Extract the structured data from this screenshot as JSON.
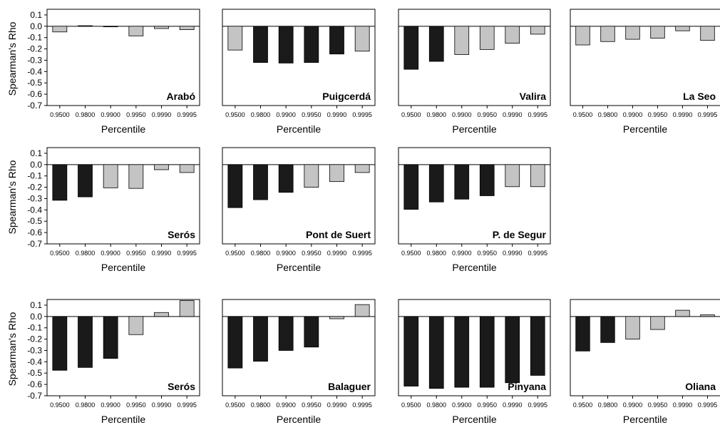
{
  "figure": {
    "ylabel": "Spearman's Rho",
    "xlabel": "Percentile"
  },
  "colors": {
    "significant": "#1a1a1a",
    "not_significant": "#c4c4c4",
    "axis": "#000000"
  },
  "chart_data": [
    {
      "type": "bar",
      "title": "Arabó",
      "categories": [
        "0.9500",
        "0.9800",
        "0.9900",
        "0.9950",
        "0.9990",
        "0.9995"
      ],
      "values": [
        -0.05,
        0.005,
        -0.005,
        -0.085,
        -0.02,
        -0.03
      ],
      "significant": [
        false,
        false,
        false,
        false,
        false,
        false
      ],
      "ylim": [
        -0.7,
        0.15
      ],
      "yticks": [
        "0.1",
        "0.0",
        "-0.1",
        "-0.2",
        "-0.3",
        "-0.4",
        "-0.5",
        "-0.6",
        "-0.7"
      ],
      "xlabel": "Percentile",
      "ylabel": "Spearman's Rho"
    },
    {
      "type": "bar",
      "title": "Puigcerdá",
      "categories": [
        "0.9500",
        "0.9800",
        "0.9900",
        "0.9950",
        "0.9990",
        "0.9995"
      ],
      "values": [
        -0.21,
        -0.32,
        -0.325,
        -0.32,
        -0.245,
        -0.22
      ],
      "significant": [
        false,
        true,
        true,
        true,
        true,
        false
      ],
      "ylim": [
        -0.7,
        0.15
      ],
      "xlabel": "Percentile"
    },
    {
      "type": "bar",
      "title": "Valira",
      "categories": [
        "0.9500",
        "0.9800",
        "0.9900",
        "0.9950",
        "0.9990",
        "0.9995"
      ],
      "values": [
        -0.38,
        -0.31,
        -0.25,
        -0.205,
        -0.15,
        -0.07
      ],
      "significant": [
        true,
        true,
        false,
        false,
        false,
        false
      ],
      "ylim": [
        -0.7,
        0.15
      ],
      "xlabel": "Percentile"
    },
    {
      "type": "bar",
      "title": "La Seo",
      "categories": [
        "0.9500",
        "0.9800",
        "0.9900",
        "0.9950",
        "0.9990",
        "0.9995"
      ],
      "values": [
        -0.165,
        -0.135,
        -0.115,
        -0.105,
        -0.04,
        -0.125
      ],
      "significant": [
        false,
        false,
        false,
        false,
        false,
        false
      ],
      "ylim": [
        -0.7,
        0.15
      ],
      "xlabel": "Percentile"
    },
    {
      "type": "bar",
      "title": "Serós",
      "categories": [
        "0.9500",
        "0.9800",
        "0.9900",
        "0.9950",
        "0.9990",
        "0.9995"
      ],
      "values": [
        -0.315,
        -0.285,
        -0.205,
        -0.21,
        -0.045,
        -0.07
      ],
      "significant": [
        true,
        true,
        false,
        false,
        false,
        false
      ],
      "ylim": [
        -0.7,
        0.15
      ],
      "yticks": [
        "0.1",
        "0.0",
        "-0.1",
        "-0.2",
        "-0.3",
        "-0.4",
        "-0.5",
        "-0.6",
        "-0.7"
      ],
      "xlabel": "Percentile",
      "ylabel": "Spearman's Rho"
    },
    {
      "type": "bar",
      "title": "Pont de Suert",
      "categories": [
        "0.9500",
        "0.9800",
        "0.9900",
        "0.9950",
        "0.9990",
        "0.9995"
      ],
      "values": [
        -0.38,
        -0.31,
        -0.245,
        -0.2,
        -0.15,
        -0.07
      ],
      "significant": [
        true,
        true,
        true,
        false,
        false,
        false
      ],
      "ylim": [
        -0.7,
        0.15
      ],
      "xlabel": "Percentile"
    },
    {
      "type": "bar",
      "title": "P. de Segur",
      "categories": [
        "0.9500",
        "0.9800",
        "0.9900",
        "0.9950",
        "0.9990",
        "0.9995"
      ],
      "values": [
        -0.395,
        -0.33,
        -0.305,
        -0.275,
        -0.195,
        -0.195
      ],
      "significant": [
        true,
        true,
        true,
        true,
        false,
        false
      ],
      "ylim": [
        -0.7,
        0.15
      ],
      "xlabel": "Percentile"
    },
    {
      "type": "bar",
      "title": "Serós",
      "categories": [
        "0.9500",
        "0.9800",
        "0.9900",
        "0.9950",
        "0.9990",
        "0.9995"
      ],
      "values": [
        -0.475,
        -0.45,
        -0.37,
        -0.16,
        0.035,
        0.14
      ],
      "significant": [
        true,
        true,
        true,
        false,
        false,
        false
      ],
      "ylim": [
        -0.7,
        0.15
      ],
      "yticks": [
        "0.1",
        "0.0",
        "-0.1",
        "-0.2",
        "-0.3",
        "-0.4",
        "-0.5",
        "-0.6",
        "-0.7"
      ],
      "xlabel": "Percentile",
      "ylabel": "Spearman's Rho"
    },
    {
      "type": "bar",
      "title": "Balaguer",
      "categories": [
        "0.9500",
        "0.9800",
        "0.9900",
        "0.9950",
        "0.9990",
        "0.9995"
      ],
      "values": [
        -0.455,
        -0.395,
        -0.3,
        -0.27,
        -0.02,
        0.105
      ],
      "significant": [
        true,
        true,
        true,
        true,
        false,
        false
      ],
      "ylim": [
        -0.7,
        0.15
      ],
      "xlabel": "Percentile"
    },
    {
      "type": "bar",
      "title": "Pinyana",
      "categories": [
        "0.9500",
        "0.9800",
        "0.9900",
        "0.9950",
        "0.9990",
        "0.9995"
      ],
      "values": [
        -0.615,
        -0.635,
        -0.625,
        -0.625,
        -0.585,
        -0.52
      ],
      "significant": [
        true,
        true,
        true,
        true,
        true,
        true
      ],
      "ylim": [
        -0.7,
        0.15
      ],
      "xlabel": "Percentile"
    },
    {
      "type": "bar",
      "title": "Oliana",
      "categories": [
        "0.9500",
        "0.9800",
        "0.9900",
        "0.9950",
        "0.9990",
        "0.9995"
      ],
      "values": [
        -0.305,
        -0.23,
        -0.2,
        -0.115,
        0.055,
        0.015
      ],
      "significant": [
        true,
        true,
        false,
        false,
        false,
        false
      ],
      "ylim": [
        -0.7,
        0.15
      ],
      "xlabel": "Percentile"
    }
  ]
}
